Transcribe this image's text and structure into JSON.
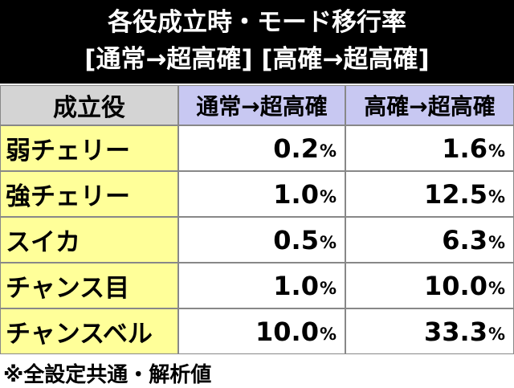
{
  "header": {
    "title": "各役成立時・モード移行率",
    "subtitle": "[通常→超高確] [高確→超高確]"
  },
  "table": {
    "columns": [
      "成立役",
      "通常→超高確",
      "高確→超高確"
    ],
    "rows": [
      {
        "role": "弱チェリー",
        "cells": [
          {
            "num": "0.2",
            "unit": "%"
          },
          {
            "num": "1.6",
            "unit": "%"
          }
        ]
      },
      {
        "role": "強チェリー",
        "cells": [
          {
            "num": "1.0",
            "unit": "%"
          },
          {
            "num": "12.5",
            "unit": "%"
          }
        ]
      },
      {
        "role": "スイカ",
        "cells": [
          {
            "num": "0.5",
            "unit": "%"
          },
          {
            "num": "6.3",
            "unit": "%"
          }
        ]
      },
      {
        "role": "チャンス目",
        "cells": [
          {
            "num": "1.0",
            "unit": "%"
          },
          {
            "num": "10.0",
            "unit": "%"
          }
        ]
      },
      {
        "role": "チャンスベル",
        "cells": [
          {
            "num": "10.0",
            "unit": "%"
          },
          {
            "num": "33.3",
            "unit": "%"
          }
        ]
      }
    ]
  },
  "footer": {
    "note": "※全設定共通・解析値"
  }
}
